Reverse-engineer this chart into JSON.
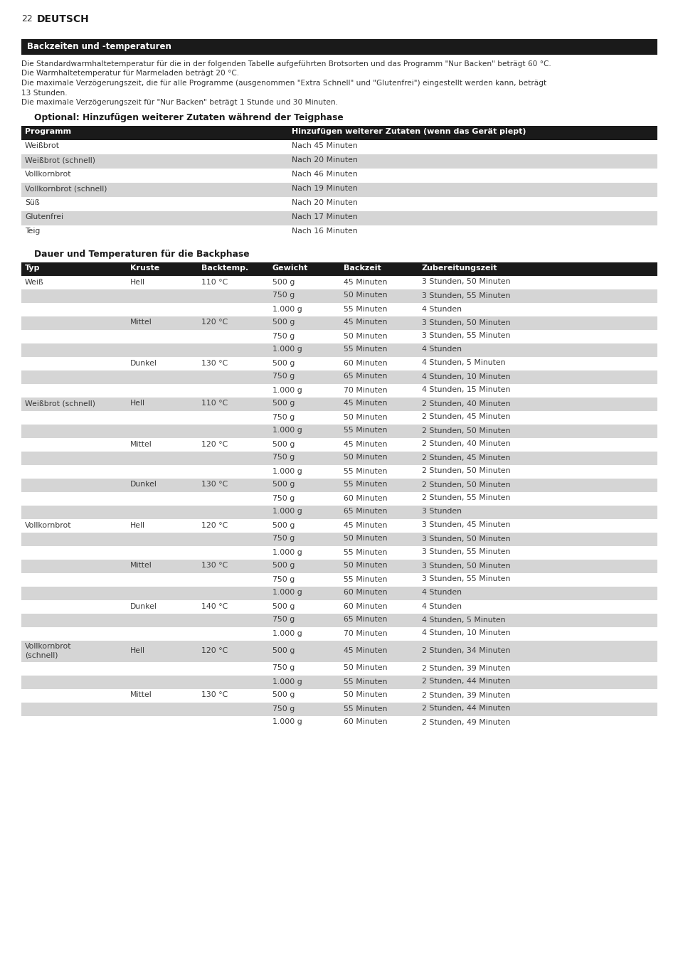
{
  "page_number": "22",
  "page_title": "DEUTSCH",
  "section1_header": "Backzeiten und -temperaturen",
  "section1_text": [
    "Die Standardwarmhaltetemperatur für die in der folgenden Tabelle aufgeführten Brotsorten und das Programm \"Nur Backen\" beträgt 60 °C.",
    "Die Warmhaltetemperatur für Marmeladen beträgt 20 °C.",
    "Die maximale Verzögerungszeit, die für alle Programme (ausgenommen \"Extra Schnell\" und \"Glutenfrei\") eingestellt werden kann, beträgt",
    "13 Stunden.",
    "Die maximale Verzögerungszeit für \"Nur Backen\" beträgt 1 Stunde und 30 Minuten."
  ],
  "section2_title": "Optional: Hinzufügen weiterer Zutaten während der Teigphase",
  "table1_headers": [
    "Programm",
    "Hinzufügen weiterer Zutaten (wenn das Gerät piept)"
  ],
  "table1_rows": [
    [
      "Weißbrot",
      "Nach 45 Minuten"
    ],
    [
      "Weißbrot (schnell)",
      "Nach 20 Minuten"
    ],
    [
      "Vollkornbrot",
      "Nach 46 Minuten"
    ],
    [
      "Vollkornbrot (schnell)",
      "Nach 19 Minuten"
    ],
    [
      "Süß",
      "Nach 20 Minuten"
    ],
    [
      "Glutenfrei",
      "Nach 17 Minuten"
    ],
    [
      "Teig",
      "Nach 16 Minuten"
    ]
  ],
  "section3_title": "Dauer und Temperaturen für die Backphase",
  "table2_headers": [
    "Typ",
    "Kruste",
    "Backtemp.",
    "Gewicht",
    "Backzeit",
    "Zubereitungszeit"
  ],
  "table2_rows": [
    [
      "Weiß",
      "Hell",
      "110 °C",
      "500 g",
      "45 Minuten",
      "3 Stunden, 50 Minuten"
    ],
    [
      "",
      "",
      "",
      "750 g",
      "50 Minuten",
      "3 Stunden, 55 Minuten"
    ],
    [
      "",
      "",
      "",
      "1.000 g",
      "55 Minuten",
      "4 Stunden"
    ],
    [
      "",
      "Mittel",
      "120 °C",
      "500 g",
      "45 Minuten",
      "3 Stunden, 50 Minuten"
    ],
    [
      "",
      "",
      "",
      "750 g",
      "50 Minuten",
      "3 Stunden, 55 Minuten"
    ],
    [
      "",
      "",
      "",
      "1.000 g",
      "55 Minuten",
      "4 Stunden"
    ],
    [
      "",
      "Dunkel",
      "130 °C",
      "500 g",
      "60 Minuten",
      "4 Stunden, 5 Minuten"
    ],
    [
      "",
      "",
      "",
      "750 g",
      "65 Minuten",
      "4 Stunden, 10 Minuten"
    ],
    [
      "",
      "",
      "",
      "1.000 g",
      "70 Minuten",
      "4 Stunden, 15 Minuten"
    ],
    [
      "Weißbrot (schnell)",
      "Hell",
      "110 °C",
      "500 g",
      "45 Minuten",
      "2 Stunden, 40 Minuten"
    ],
    [
      "",
      "",
      "",
      "750 g",
      "50 Minuten",
      "2 Stunden, 45 Minuten"
    ],
    [
      "",
      "",
      "",
      "1.000 g",
      "55 Minuten",
      "2 Stunden, 50 Minuten"
    ],
    [
      "",
      "Mittel",
      "120 °C",
      "500 g",
      "45 Minuten",
      "2 Stunden, 40 Minuten"
    ],
    [
      "",
      "",
      "",
      "750 g",
      "50 Minuten",
      "2 Stunden, 45 Minuten"
    ],
    [
      "",
      "",
      "",
      "1.000 g",
      "55 Minuten",
      "2 Stunden, 50 Minuten"
    ],
    [
      "",
      "Dunkel",
      "130 °C",
      "500 g",
      "55 Minuten",
      "2 Stunden, 50 Minuten"
    ],
    [
      "",
      "",
      "",
      "750 g",
      "60 Minuten",
      "2 Stunden, 55 Minuten"
    ],
    [
      "",
      "",
      "",
      "1.000 g",
      "65 Minuten",
      "3 Stunden"
    ],
    [
      "Vollkornbrot",
      "Hell",
      "120 °C",
      "500 g",
      "45 Minuten",
      "3 Stunden, 45 Minuten"
    ],
    [
      "",
      "",
      "",
      "750 g",
      "50 Minuten",
      "3 Stunden, 50 Minuten"
    ],
    [
      "",
      "",
      "",
      "1.000 g",
      "55 Minuten",
      "3 Stunden, 55 Minuten"
    ],
    [
      "",
      "Mittel",
      "130 °C",
      "500 g",
      "50 Minuten",
      "3 Stunden, 50 Minuten"
    ],
    [
      "",
      "",
      "",
      "750 g",
      "55 Minuten",
      "3 Stunden, 55 Minuten"
    ],
    [
      "",
      "",
      "",
      "1.000 g",
      "60 Minuten",
      "4 Stunden"
    ],
    [
      "",
      "Dunkel",
      "140 °C",
      "500 g",
      "60 Minuten",
      "4 Stunden"
    ],
    [
      "",
      "",
      "",
      "750 g",
      "65 Minuten",
      "4 Stunden, 5 Minuten"
    ],
    [
      "",
      "",
      "",
      "1.000 g",
      "70 Minuten",
      "4 Stunden, 10 Minuten"
    ],
    [
      "Vollkornbrot (schnell)",
      "Hell",
      "120 °C",
      "500 g",
      "45 Minuten",
      "2 Stunden, 34 Minuten"
    ],
    [
      "",
      "",
      "",
      "750 g",
      "50 Minuten",
      "2 Stunden, 39 Minuten"
    ],
    [
      "",
      "",
      "",
      "1.000 g",
      "55 Minuten",
      "2 Stunden, 44 Minuten"
    ],
    [
      "",
      "Mittel",
      "130 °C",
      "500 g",
      "50 Minuten",
      "2 Stunden, 39 Minuten"
    ],
    [
      "",
      "",
      "",
      "750 g",
      "55 Minuten",
      "2 Stunden, 44 Minuten"
    ],
    [
      "",
      "",
      "",
      "1.000 g",
      "60 Minuten",
      "2 Stunden, 49 Minuten"
    ]
  ],
  "color_header_bg": "#1a1a1a",
  "color_header_text": "#ffffff",
  "color_row_light": "#ffffff",
  "color_row_dark": "#d5d5d5",
  "color_text": "#3a3a3a"
}
